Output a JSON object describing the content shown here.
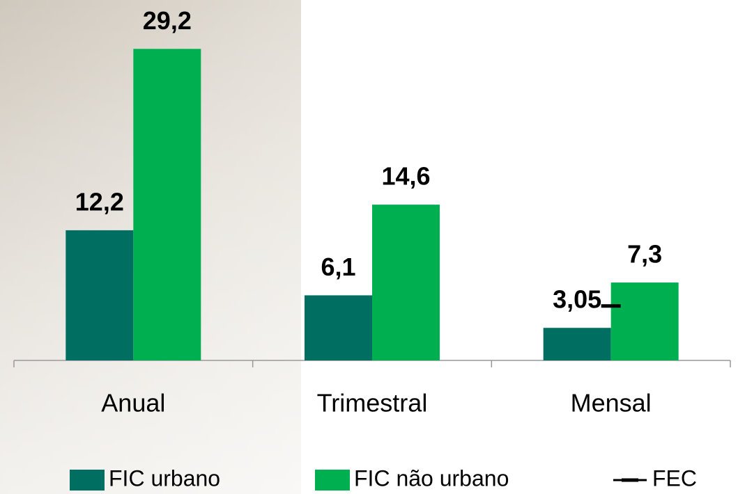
{
  "chart_data": {
    "type": "bar",
    "categories": [
      "Anual",
      "Trimestral",
      "Mensal"
    ],
    "series": [
      {
        "name": "FIC urbano",
        "color": "#006e60",
        "values": [
          12.2,
          6.1,
          3.05
        ],
        "value_labels": [
          "12,2",
          "6,1",
          "3,05"
        ]
      },
      {
        "name": "FIC não urbano",
        "color": "#00b050",
        "values": [
          29.2,
          14.6,
          7.3
        ],
        "value_labels": [
          "29,2",
          "14,6",
          "7,3"
        ]
      },
      {
        "name": "FEC",
        "color": "#000000",
        "type": "line",
        "values": [
          null,
          null,
          5.1
        ]
      }
    ],
    "ylim": [
      0,
      30
    ],
    "grid": false,
    "legend": "bottom"
  }
}
